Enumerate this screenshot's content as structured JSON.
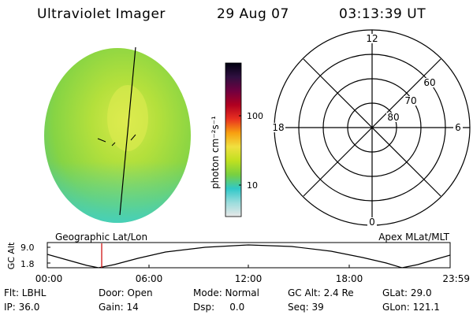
{
  "header": {
    "instrument": "Ultraviolet Imager",
    "date": "29 Aug 07",
    "time": "03:13:39 UT"
  },
  "colorbar": {
    "label": "photon cm⁻²s⁻¹",
    "scale": "log",
    "ticks": [
      "100",
      "10"
    ]
  },
  "polar_plot": {
    "mlt_labels": [
      "12",
      "18",
      "6",
      "0"
    ],
    "mlat_labels": [
      "60",
      "70",
      "80"
    ]
  },
  "orbit_plot": {
    "left_title": "Geographic Lat/Lon",
    "right_title": "Apex MLat/MLT",
    "ylabel": "GC Alt",
    "yticks": [
      "9.0",
      "1.8"
    ],
    "xticks": [
      "00:00",
      "06:00",
      "12:00",
      "18:00",
      "23:59"
    ]
  },
  "info": [
    [
      "Flt: LBHL",
      "Door: Open",
      "Mode: Normal",
      "GC Alt: 2.4 Re",
      "GLat: 29.0"
    ],
    [
      "IP: 36.0",
      "Gain: 14",
      "Dsp:     0.0",
      "Seq: 39",
      "GLon: 121.1"
    ]
  ],
  "colors": {
    "colorbar_stops": [
      "#e8e8e8",
      "#9adcdc",
      "#30c8c8",
      "#78d040",
      "#c0e020",
      "#f0e040",
      "#f8a010",
      "#e83020",
      "#b00020",
      "#700040",
      "#301040",
      "#000010"
    ]
  }
}
